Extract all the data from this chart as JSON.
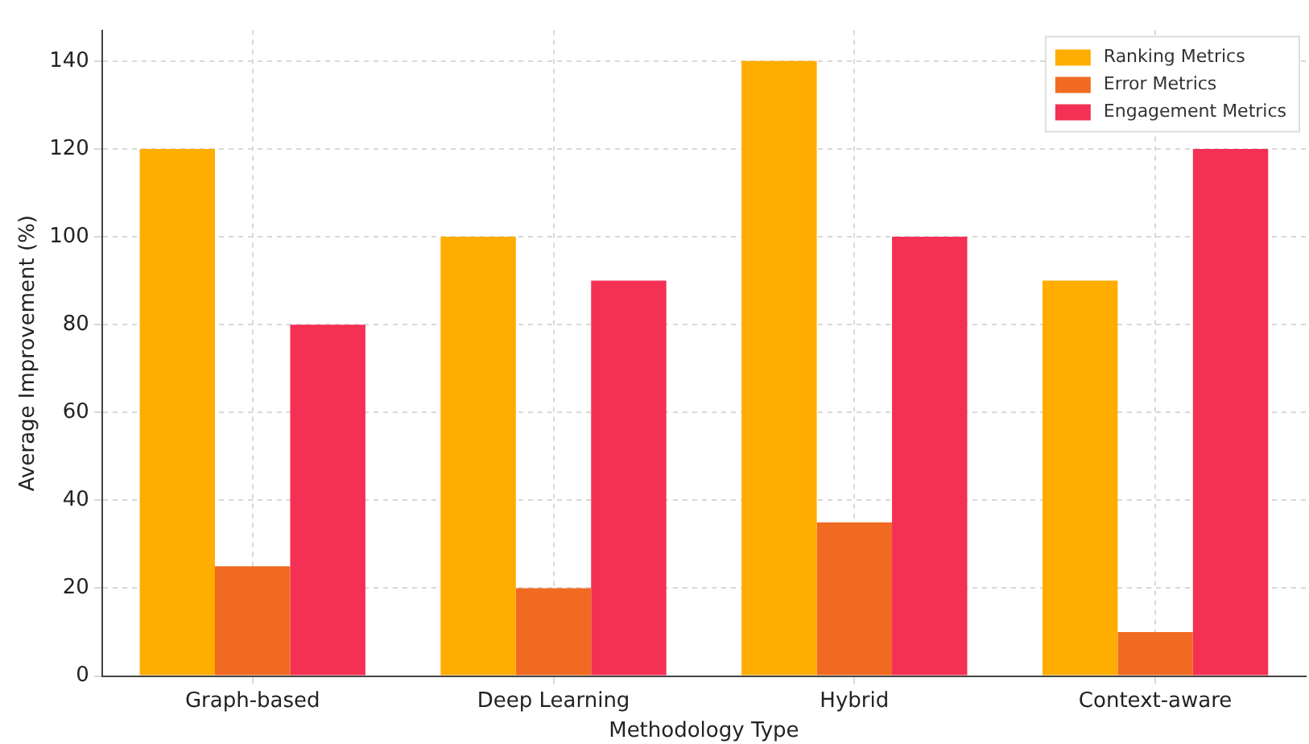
{
  "chart_data": {
    "type": "bar",
    "xlabel": "Methodology Type",
    "ylabel": "Average Improvement (%)",
    "categories": [
      "Graph-based",
      "Deep Learning",
      "Hybrid",
      "Context-aware"
    ],
    "series": [
      {
        "name": "Ranking Metrics",
        "color": "#ffad00",
        "values": [
          120,
          100,
          140,
          90
        ]
      },
      {
        "name": "Error Metrics",
        "color": "#f06a22",
        "values": [
          25,
          20,
          35,
          10
        ]
      },
      {
        "name": "Engagement Metrics",
        "color": "#f43154",
        "values": [
          80,
          90,
          100,
          120
        ]
      }
    ],
    "ylim": [
      0,
      147
    ],
    "yticks": [
      0,
      20,
      40,
      60,
      80,
      100,
      120,
      140
    ],
    "grid": true,
    "legend": "top right"
  }
}
